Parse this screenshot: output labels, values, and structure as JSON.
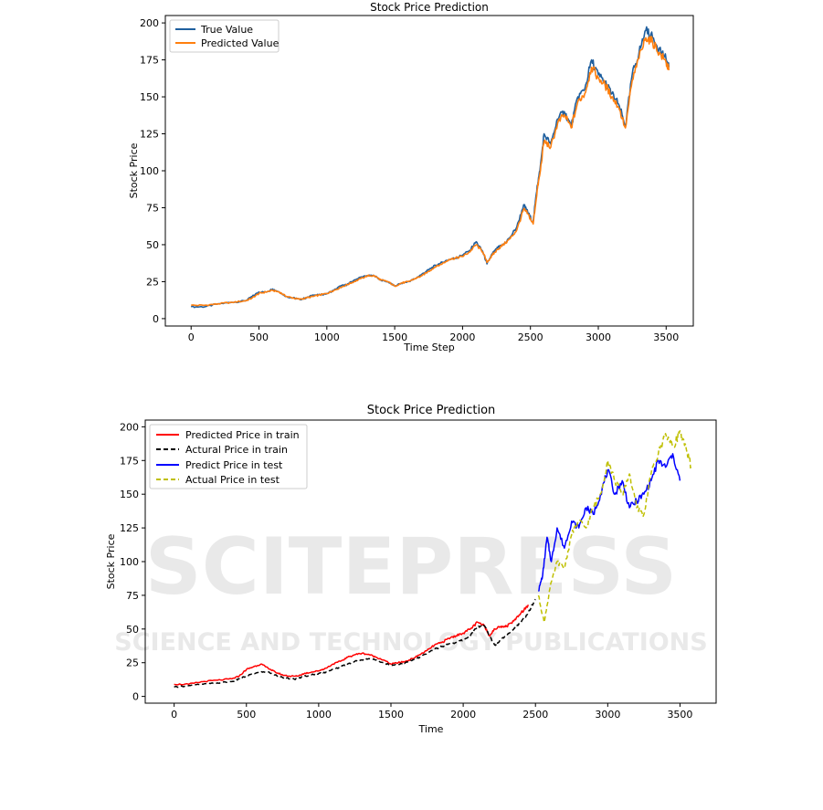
{
  "watermark": {
    "main": "SCITEPRESS",
    "sub": "SCIENCE AND TECHNOLOGY PUBLICATIONS"
  },
  "colors": {
    "true_value": "#1f5f9e",
    "predicted_value": "#ff7f0e",
    "pred_train": "#ff0000",
    "actual_train": "#000000",
    "pred_test": "#0000ff",
    "actual_test": "#bfbf00"
  },
  "chart_data": [
    {
      "type": "line",
      "title": "Stock Price Prediction",
      "xlabel": "Time Step",
      "ylabel": "Stock Price",
      "xlim": [
        -190,
        3700
      ],
      "ylim": [
        -5,
        205
      ],
      "xticks": [
        "0",
        "500",
        "1000",
        "1500",
        "2000",
        "2500",
        "3000",
        "3500"
      ],
      "xtick_values": [
        0,
        500,
        1000,
        1500,
        2000,
        2500,
        3000,
        3500
      ],
      "yticks": [
        "0",
        "25",
        "50",
        "75",
        "100",
        "125",
        "150",
        "175",
        "200"
      ],
      "ytick_values": [
        0,
        25,
        50,
        75,
        100,
        125,
        150,
        175,
        200
      ],
      "legend_position": "top-left",
      "grid": false,
      "series": [
        {
          "name": "True Value",
          "x": [
            0,
            100,
            200,
            300,
            400,
            450,
            500,
            550,
            600,
            650,
            700,
            750,
            800,
            850,
            900,
            950,
            1000,
            1050,
            1100,
            1150,
            1200,
            1250,
            1300,
            1350,
            1400,
            1450,
            1500,
            1550,
            1600,
            1650,
            1700,
            1750,
            1800,
            1850,
            1900,
            1950,
            2000,
            2050,
            2100,
            2150,
            2180,
            2220,
            2260,
            2300,
            2350,
            2400,
            2450,
            2480,
            2520,
            2550,
            2570,
            2600,
            2650,
            2700,
            2750,
            2800,
            2850,
            2900,
            2950,
            3000,
            3050,
            3100,
            3150,
            3200,
            3250,
            3300,
            3350,
            3400,
            3450,
            3500,
            3520
          ],
          "values": [
            8,
            8,
            10,
            11,
            12,
            15,
            18,
            18,
            20,
            18,
            15,
            14,
            13,
            14,
            16,
            16,
            17,
            19,
            22,
            23,
            26,
            28,
            29,
            29,
            26,
            25,
            22,
            24,
            25,
            27,
            30,
            33,
            36,
            38,
            40,
            41,
            43,
            46,
            52,
            45,
            37,
            44,
            48,
            50,
            55,
            62,
            77,
            72,
            65,
            90,
            100,
            125,
            118,
            135,
            140,
            130,
            150,
            155,
            175,
            165,
            160,
            152,
            145,
            130,
            165,
            180,
            195,
            190,
            183,
            175,
            170
          ]
        },
        {
          "name": "Predicted Value",
          "x": [
            0,
            100,
            200,
            300,
            400,
            450,
            500,
            550,
            600,
            650,
            700,
            750,
            800,
            850,
            900,
            950,
            1000,
            1050,
            1100,
            1150,
            1200,
            1250,
            1300,
            1350,
            1400,
            1450,
            1500,
            1550,
            1600,
            1650,
            1700,
            1750,
            1800,
            1850,
            1900,
            1950,
            2000,
            2050,
            2100,
            2150,
            2180,
            2220,
            2260,
            2300,
            2350,
            2400,
            2450,
            2480,
            2520,
            2550,
            2570,
            2600,
            2650,
            2700,
            2750,
            2800,
            2850,
            2900,
            2950,
            3000,
            3050,
            3100,
            3150,
            3200,
            3250,
            3300,
            3350,
            3400,
            3450,
            3500,
            3520
          ],
          "values": [
            9,
            9,
            10,
            11,
            12,
            14,
            17,
            18,
            19,
            18,
            15,
            14,
            13,
            14,
            15,
            16,
            17,
            19,
            21,
            23,
            25,
            27,
            29,
            29,
            26,
            25,
            22,
            24,
            25,
            27,
            29,
            32,
            35,
            37,
            40,
            41,
            42,
            45,
            50,
            45,
            38,
            43,
            47,
            50,
            54,
            60,
            74,
            71,
            64,
            87,
            98,
            120,
            116,
            132,
            138,
            129,
            147,
            152,
            170,
            163,
            158,
            150,
            143,
            129,
            161,
            176,
            190,
            187,
            180,
            173,
            168
          ]
        }
      ]
    },
    {
      "type": "line",
      "title": "Stock Price Prediction",
      "xlabel": "Time",
      "ylabel": "Stock Price",
      "xlim": [
        -200,
        3750
      ],
      "ylim": [
        -5,
        205
      ],
      "xticks": [
        "0",
        "500",
        "1000",
        "1500",
        "2000",
        "2500",
        "3000",
        "3500"
      ],
      "xtick_values": [
        0,
        500,
        1000,
        1500,
        2000,
        2500,
        3000,
        3500
      ],
      "yticks": [
        "0",
        "25",
        "50",
        "75",
        "100",
        "125",
        "150",
        "175",
        "200"
      ],
      "ytick_values": [
        0,
        25,
        50,
        75,
        100,
        125,
        150,
        175,
        200
      ],
      "legend_position": "top-left",
      "grid": false,
      "series": [
        {
          "name": "Predicted Price in train",
          "style": "solid",
          "x": [
            0,
            100,
            200,
            300,
            400,
            450,
            500,
            550,
            600,
            650,
            700,
            750,
            800,
            850,
            900,
            950,
            1000,
            1050,
            1100,
            1150,
            1200,
            1250,
            1300,
            1350,
            1400,
            1450,
            1500,
            1550,
            1600,
            1650,
            1700,
            1750,
            1800,
            1850,
            1900,
            1950,
            2000,
            2050,
            2100,
            2150,
            2180,
            2220,
            2260,
            2300,
            2350,
            2400,
            2450
          ],
          "values": [
            9,
            9,
            11,
            12,
            13,
            15,
            20,
            22,
            24,
            21,
            18,
            16,
            15,
            15,
            17,
            18,
            19,
            21,
            24,
            26,
            29,
            31,
            32,
            31,
            29,
            27,
            24,
            25,
            26,
            28,
            31,
            34,
            38,
            40,
            43,
            45,
            47,
            50,
            55,
            52,
            45,
            50,
            52,
            52,
            56,
            62,
            68
          ]
        },
        {
          "name": "Actural Price in train",
          "style": "dashed",
          "x": [
            0,
            100,
            200,
            300,
            400,
            450,
            500,
            550,
            600,
            650,
            700,
            750,
            800,
            850,
            900,
            950,
            1000,
            1050,
            1100,
            1150,
            1200,
            1250,
            1300,
            1350,
            1400,
            1450,
            1500,
            1550,
            1600,
            1650,
            1700,
            1750,
            1800,
            1850,
            1900,
            1950,
            2000,
            2050,
            2100,
            2150,
            2180,
            2220,
            2260,
            2300,
            2350,
            2400,
            2450,
            2500
          ],
          "values": [
            7,
            8,
            9,
            10,
            11,
            13,
            15,
            17,
            18,
            18,
            16,
            14,
            13,
            13,
            15,
            16,
            17,
            18,
            20,
            22,
            24,
            26,
            27,
            28,
            27,
            25,
            23,
            24,
            25,
            27,
            29,
            32,
            35,
            37,
            39,
            40,
            42,
            45,
            52,
            52,
            45,
            38,
            42,
            46,
            50,
            55,
            62,
            72
          ]
        },
        {
          "name": "Predict Price in test",
          "style": "solid",
          "x": [
            2520,
            2550,
            2580,
            2610,
            2650,
            2700,
            2750,
            2800,
            2850,
            2900,
            2950,
            3000,
            3050,
            3100,
            3150,
            3200,
            3250,
            3300,
            3350,
            3400,
            3450,
            3500
          ],
          "values": [
            78,
            90,
            118,
            100,
            125,
            110,
            130,
            125,
            140,
            135,
            150,
            168,
            150,
            160,
            140,
            145,
            150,
            160,
            175,
            170,
            180,
            160
          ]
        },
        {
          "name": "Actual Price in test",
          "style": "dashed",
          "x": [
            2520,
            2560,
            2600,
            2650,
            2700,
            2750,
            2800,
            2850,
            2900,
            2950,
            3000,
            3050,
            3100,
            3150,
            3200,
            3250,
            3300,
            3350,
            3400,
            3450,
            3500,
            3550,
            3580
          ],
          "values": [
            75,
            55,
            80,
            100,
            95,
            120,
            130,
            125,
            140,
            150,
            175,
            160,
            150,
            165,
            140,
            135,
            165,
            180,
            195,
            185,
            197,
            180,
            170
          ]
        }
      ]
    }
  ]
}
